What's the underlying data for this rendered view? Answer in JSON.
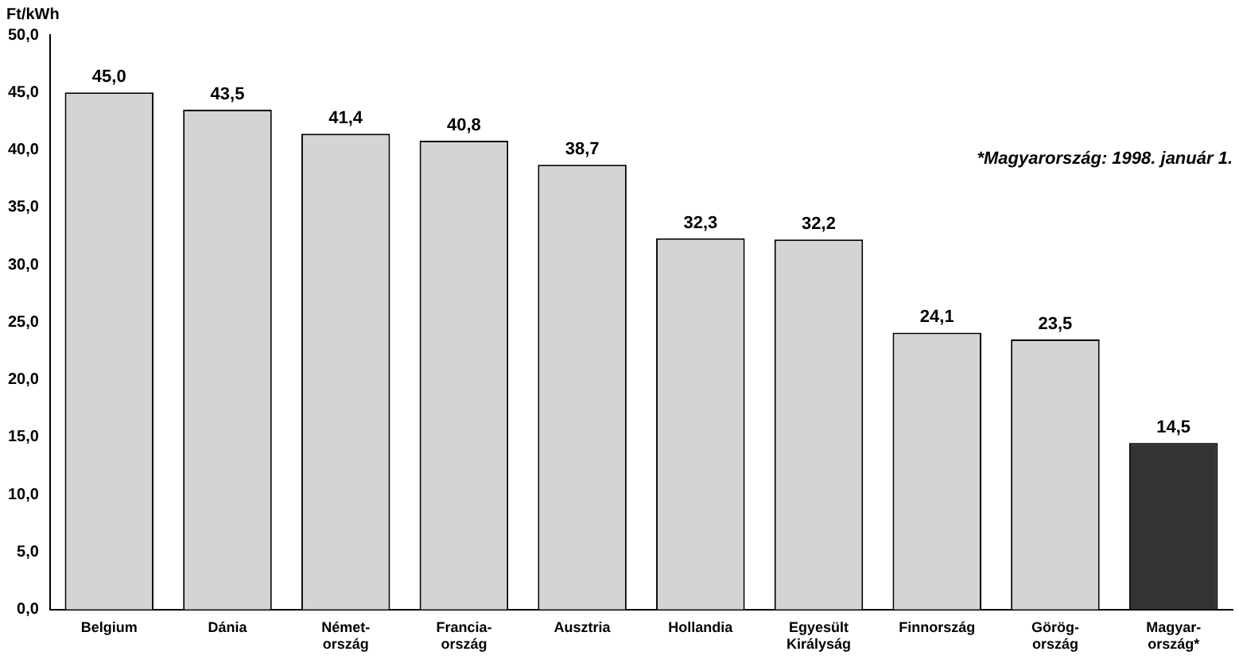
{
  "chart_data": {
    "type": "bar",
    "ylabel": "Ft/kWh",
    "categories": [
      "Belgium",
      "Dánia",
      "Német-\nország",
      "Francia-\nország",
      "Ausztria",
      "Hollandia",
      "Egyesült\nKirályság",
      "Finnország",
      "Görög-\nország",
      "Magyar-\nország*"
    ],
    "values": [
      45.0,
      43.5,
      41.4,
      40.8,
      38.7,
      32.3,
      32.2,
      24.1,
      23.5,
      14.5
    ],
    "value_labels": [
      "45,0",
      "43,5",
      "41,4",
      "40,8",
      "38,7",
      "32,3",
      "32,2",
      "24,1",
      "23,5",
      "14,5"
    ],
    "colors": [
      "#d4d4d4",
      "#d4d4d4",
      "#d4d4d4",
      "#d4d4d4",
      "#d4d4d4",
      "#d4d4d4",
      "#d4d4d4",
      "#d4d4d4",
      "#d4d4d4",
      "#333333"
    ],
    "ylim": [
      0,
      50
    ],
    "yticks": [
      {
        "value": 0,
        "label": "0,0"
      },
      {
        "value": 5,
        "label": "5,0"
      },
      {
        "value": 10,
        "label": "10,0"
      },
      {
        "value": 15,
        "label": "15,0"
      },
      {
        "value": 20,
        "label": "20,0"
      },
      {
        "value": 25,
        "label": "25,0"
      },
      {
        "value": 30,
        "label": "30,0"
      },
      {
        "value": 35,
        "label": "35,0"
      },
      {
        "value": 40,
        "label": "40,0"
      },
      {
        "value": 45,
        "label": "45,0"
      },
      {
        "value": 50,
        "label": "50,0"
      }
    ],
    "grid": false,
    "legend": false,
    "annotations": [
      "*Magyarország: 1998. január 1."
    ]
  }
}
